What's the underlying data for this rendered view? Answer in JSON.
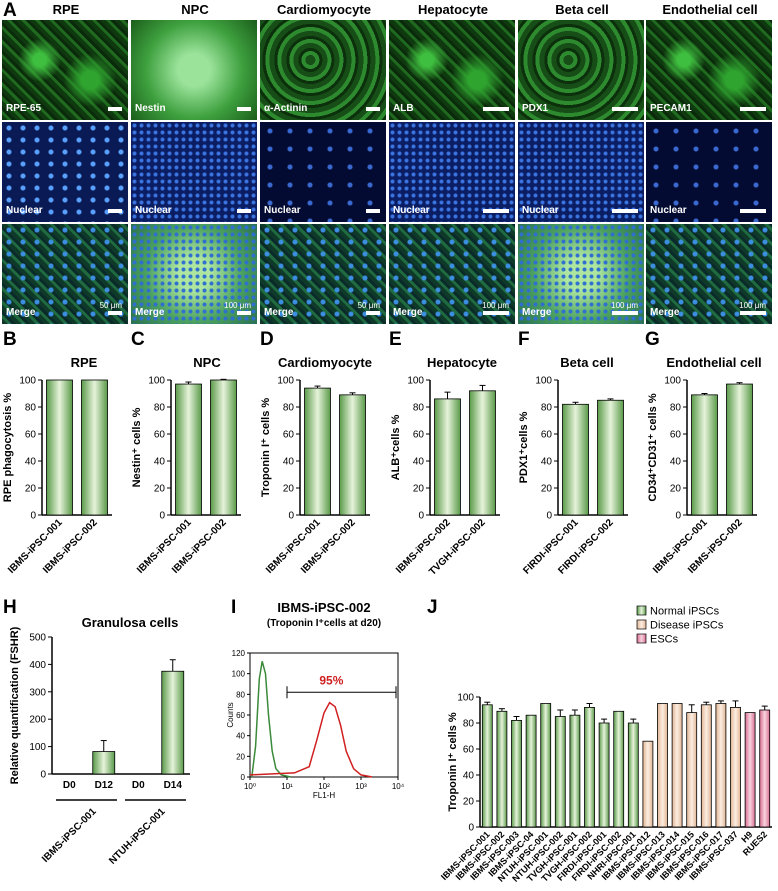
{
  "panel_letters": [
    "A",
    "B",
    "C",
    "D",
    "E",
    "F",
    "G",
    "H",
    "I",
    "J"
  ],
  "panel_a": {
    "columns": [
      "RPE",
      "NPC",
      "Cardiomyocyte",
      "Hepatocyte",
      "Beta cell",
      "Endothelial cell"
    ],
    "row1_labels": [
      "RPE-65",
      "Nestin",
      "α-Actinin",
      "ALB",
      "PDX1",
      "PECAM1"
    ],
    "row2_label": "Nuclear",
    "row3_label": "Merge",
    "scale_labels": [
      "50 μm",
      "100 μm",
      "50 μm",
      "100 μm",
      "100 μm",
      "100 μm"
    ]
  },
  "chart_data": [
    {
      "id": "B",
      "type": "bar",
      "title": "RPE",
      "ylabel": "RPE phagocytosis %",
      "categories": [
        "IBMS-iPSC-001",
        "IBMS-iPSC-002"
      ],
      "values": [
        100,
        100
      ],
      "errors": [
        0,
        0
      ],
      "ylim": [
        0,
        100
      ],
      "yticks": [
        0,
        20,
        40,
        60,
        80,
        100
      ]
    },
    {
      "id": "C",
      "type": "bar",
      "title": "NPC",
      "ylabel": "Nestin⁺ cells %",
      "categories": [
        "IBMS-iPSC-001",
        "IBMS-iPSC-002"
      ],
      "values": [
        97,
        100
      ],
      "errors": [
        1.5,
        0.5
      ],
      "ylim": [
        0,
        100
      ],
      "yticks": [
        0,
        20,
        40,
        60,
        80,
        100
      ]
    },
    {
      "id": "D",
      "type": "bar",
      "title": "Cardiomyocyte",
      "ylabel": "Troponin I⁺ cells %",
      "categories": [
        "IBMS-iPSC-001",
        "IBMS-iPSC-002"
      ],
      "values": [
        94,
        89
      ],
      "errors": [
        1.5,
        1.5
      ],
      "ylim": [
        0,
        100
      ],
      "yticks": [
        0,
        20,
        40,
        60,
        80,
        100
      ]
    },
    {
      "id": "E",
      "type": "bar",
      "title": "Hepatocyte",
      "ylabel": "ALB⁺cells %",
      "categories": [
        "IBMS-iPSC-002",
        "TVGH-iPSC-002"
      ],
      "values": [
        86,
        92
      ],
      "errors": [
        5,
        4
      ],
      "ylim": [
        0,
        100
      ],
      "yticks": [
        0,
        20,
        40,
        60,
        80,
        100
      ]
    },
    {
      "id": "F",
      "type": "bar",
      "title": "Beta cell",
      "ylabel": "PDX1⁺cells %",
      "categories": [
        "FIRDI-iPSC-001",
        "FIRDI-iPSC-002"
      ],
      "values": [
        82,
        85
      ],
      "errors": [
        1.5,
        1
      ],
      "ylim": [
        0,
        100
      ],
      "yticks": [
        0,
        20,
        40,
        60,
        80,
        100
      ]
    },
    {
      "id": "G",
      "type": "bar",
      "title": "Endothelial cell",
      "ylabel": "CD34⁺CD31⁺ cells %",
      "categories": [
        "IBMS-iPSC-001",
        "IBMS-iPSC-002"
      ],
      "values": [
        89,
        97
      ],
      "errors": [
        1,
        1
      ],
      "ylim": [
        0,
        100
      ],
      "yticks": [
        0,
        20,
        40,
        60,
        80,
        100
      ]
    },
    {
      "id": "H",
      "type": "bar",
      "title": "Granulosa cells",
      "ylabel": "Relative quantification (FSHR)",
      "categories": [
        "D0",
        "D12",
        "D0",
        "D14"
      ],
      "groups": [
        "IBMS-iPSC-001",
        "NTUH-iPSC-001"
      ],
      "values": [
        0,
        82,
        0,
        375
      ],
      "errors": [
        0,
        40,
        0,
        42
      ],
      "ylim": [
        0,
        500
      ],
      "yticks": [
        0,
        100,
        200,
        300,
        400,
        500
      ]
    },
    {
      "id": "I",
      "type": "histogram",
      "title": "IBMS-iPSC-002",
      "subtitle": "(Troponin I⁺cells at d20)",
      "xlabel": "FL1-H",
      "ylabel": "Counts",
      "gate_label": "95%",
      "ylim": [
        0,
        120
      ],
      "yticks": [
        0,
        20,
        40,
        60,
        80,
        100,
        120
      ],
      "xticks": [
        "10⁰",
        "10¹",
        "10²",
        "10³",
        "10⁴"
      ],
      "log_x": true
    },
    {
      "id": "J",
      "type": "bar",
      "ylabel": "Troponin I⁺ cells %",
      "ylim": [
        0,
        100
      ],
      "yticks": [
        0,
        20,
        40,
        60,
        80,
        100
      ],
      "legend": [
        "Normal iPSCs",
        "Disease iPSCs",
        "ESCs"
      ],
      "colors": {
        "Normal iPSCs": "#7fbf6f",
        "Disease iPSCs": "#f3cfb0",
        "ESCs": "#e68aa8"
      },
      "categories": [
        "IBMS-iPSC-001",
        "IBMS-iPSC-002",
        "IBMS-iPSC-003",
        "IBMS-iPSC-04",
        "NTUH-iPSC-001",
        "NTUH-iPSC-002",
        "TVGH-iPSC-001",
        "TVGH-iPSC-002",
        "FIRDI-iPSC-001",
        "FIRDI-iPSC-002",
        "NHRI-iPSC-001",
        "IBMS-iPSC-012",
        "IBMS-iPSC-013",
        "IBMS-iPSC-014",
        "IBMS-iPSC-015",
        "IBMS-iPSC-016",
        "IBMS-iPSC-017",
        "IBMS-iPSC-037",
        "H9",
        "RUES2"
      ],
      "values": [
        94,
        89,
        82,
        86,
        95,
        85,
        86,
        92,
        80,
        89,
        80,
        66,
        95,
        95,
        88,
        94,
        95,
        92,
        88,
        90
      ],
      "errors": [
        2,
        2,
        3,
        0,
        0,
        5,
        4,
        3,
        3,
        0,
        3,
        0,
        0,
        0,
        6,
        2,
        2,
        5,
        0,
        3
      ],
      "group": [
        "Normal iPSCs",
        "Normal iPSCs",
        "Normal iPSCs",
        "Normal iPSCs",
        "Normal iPSCs",
        "Normal iPSCs",
        "Normal iPSCs",
        "Normal iPSCs",
        "Normal iPSCs",
        "Normal iPSCs",
        "Normal iPSCs",
        "Disease iPSCs",
        "Disease iPSCs",
        "Disease iPSCs",
        "Disease iPSCs",
        "Disease iPSCs",
        "Disease iPSCs",
        "Disease iPSCs",
        "ESCs",
        "ESCs"
      ]
    }
  ]
}
